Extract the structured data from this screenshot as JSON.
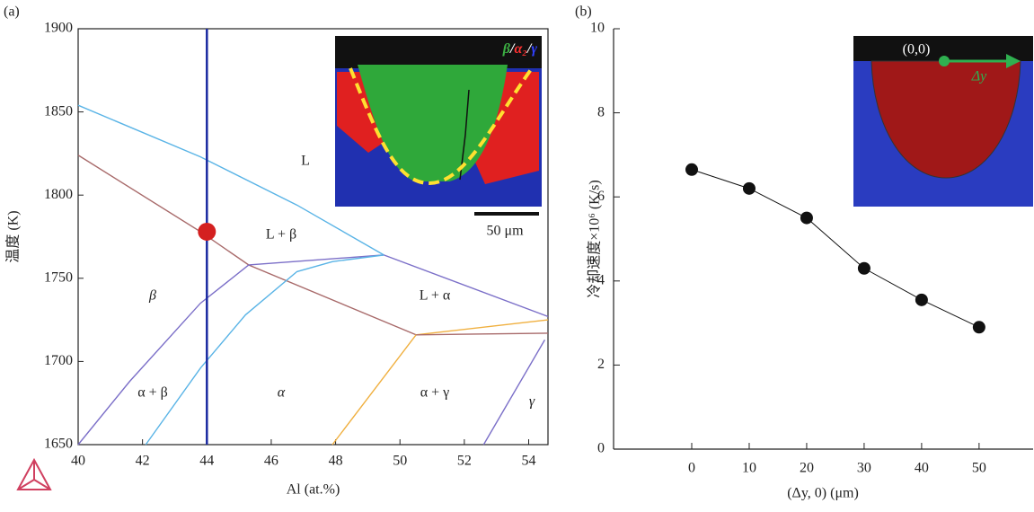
{
  "chart_data": [
    {
      "type": "phase-diagram",
      "panel": "(a)",
      "xlabel": "Al (at.%)",
      "ylabel": "温度 (K)",
      "xlim": [
        40,
        54.6
      ],
      "ylim": [
        1650,
        1900
      ],
      "xticks": [
        40,
        42,
        44,
        46,
        48,
        50,
        52,
        54
      ],
      "yticks": [
        1650,
        1700,
        1750,
        1800,
        1850,
        1900
      ],
      "lines": [
        {
          "color": "#5ab4e6",
          "x": [
            40,
            43.8,
            46.8,
            49.5
          ],
          "y": [
            1854,
            1823,
            1794,
            1764
          ]
        },
        {
          "color": "#a86a6a",
          "x": [
            40,
            43.8,
            45.3,
            50.5
          ],
          "y": [
            1824,
            1778,
            1758,
            1716
          ]
        },
        {
          "color": "#7b6fc8",
          "x": [
            45.3,
            49.5
          ],
          "y": [
            1758,
            1764
          ]
        },
        {
          "color": "#7b6fc8",
          "x": [
            49.5,
            54.6
          ],
          "y": [
            1764,
            1727
          ]
        },
        {
          "color": "#7b6fc8",
          "x": [
            40,
            41.6,
            43.8,
            45.3
          ],
          "y": [
            1650,
            1688,
            1735,
            1758
          ]
        },
        {
          "color": "#5ab4e6",
          "x": [
            42.1,
            43.8,
            45.2,
            46.8,
            47.9,
            49.5
          ],
          "y": [
            1650,
            1696,
            1728,
            1754,
            1760,
            1764
          ]
        },
        {
          "color": "#f0b040",
          "x": [
            47.9,
            50.5,
            54.6
          ],
          "y": [
            1650,
            1716,
            1725
          ]
        },
        {
          "color": "#a86a6a",
          "x": [
            50.5,
            54.6
          ],
          "y": [
            1716,
            1717
          ]
        },
        {
          "color": "#7b6fc8",
          "x": [
            52.6,
            54.5
          ],
          "y": [
            1650,
            1713
          ]
        }
      ],
      "composition": {
        "value": 44,
        "color": "#1a2aa0"
      },
      "point": {
        "x": 44,
        "y": 1778,
        "color": "#d42020"
      },
      "regions": [
        "L",
        "L + β",
        "β",
        "L + α",
        "α + β",
        "α",
        "α + γ",
        "γ"
      ],
      "inset": {
        "phases": [
          {
            "text": "β",
            "color": "#3cb043"
          },
          {
            "text": "α₂",
            "color": "#ff3030"
          },
          {
            "text": "γ",
            "color": "#3040ff"
          }
        ],
        "separator": "/",
        "scale": "50 μm"
      }
    },
    {
      "type": "line",
      "panel": "(b)",
      "xlabel": "(Δy, 0) (μm)",
      "ylabel": "冷却速度×10⁶ (K/s)",
      "x": [
        0,
        10,
        20,
        30,
        40,
        50
      ],
      "values": [
        6.65,
        6.2,
        5.5,
        4.3,
        3.55,
        2.9
      ],
      "color": "#111111",
      "xlim": [
        -13.6,
        59.4
      ],
      "ylim": [
        0,
        10
      ],
      "xticks": [
        0,
        10,
        20,
        30,
        40,
        50
      ],
      "yticks": [
        0,
        2,
        4,
        6,
        8,
        10
      ],
      "inset": {
        "origin": "(0,0)",
        "arrow": "Δy"
      }
    }
  ]
}
